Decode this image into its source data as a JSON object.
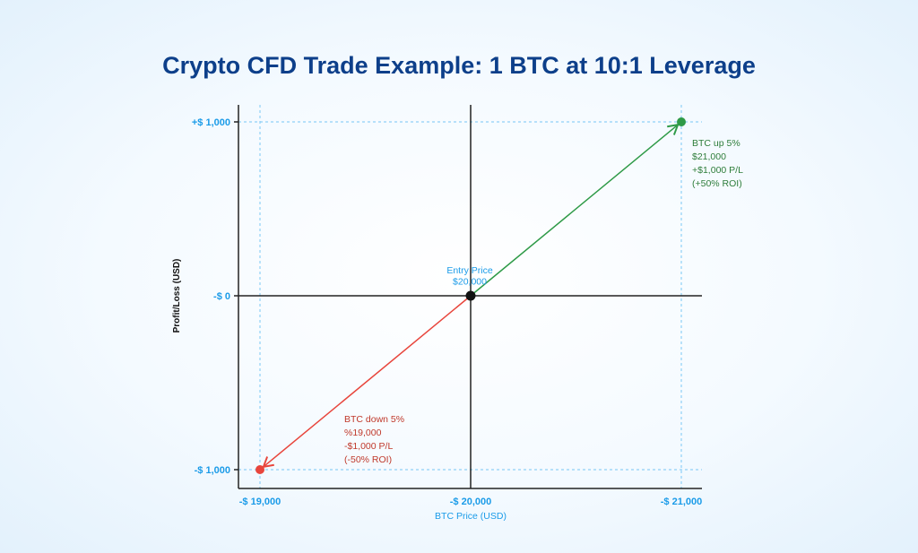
{
  "chart_data": {
    "type": "line",
    "title": "Crypto CFD Trade Example: 1 BTC at 10:1 Leverage",
    "xlabel": "BTC Price (USD)",
    "ylabel": "Profit/Loss (USD)",
    "xlim": [
      18900,
      21100
    ],
    "ylim": [
      -1100,
      1100
    ],
    "x_ticks": [
      {
        "value": 19000,
        "label": "-$ 19,000"
      },
      {
        "value": 20000,
        "label": "-$ 20,000"
      },
      {
        "value": 21000,
        "label": "-$ 21,000"
      }
    ],
    "y_ticks": [
      {
        "value": 1000,
        "label": "+$ 1,000"
      },
      {
        "value": 0,
        "label": "-$ 0"
      },
      {
        "value": -1000,
        "label": "-$ 1,000"
      }
    ],
    "grid": "dotted at tick values",
    "series": [
      {
        "color": "#2e9a47",
        "points": [
          [
            20000,
            0
          ],
          [
            21000,
            1000
          ]
        ]
      },
      {
        "color": "#e8453c",
        "points": [
          [
            20000,
            0
          ],
          [
            19000,
            -1000
          ]
        ]
      }
    ],
    "entry": {
      "x": 20000,
      "y": 0,
      "lines": [
        "Entry Price",
        "$20,000"
      ],
      "color": "#111111"
    },
    "annotations": [
      {
        "x": 21000,
        "y": 1000,
        "color": "#2e7d3a",
        "lines": [
          "BTC up 5%",
          "$21,000",
          "+$1,000 P/L",
          "(+50% ROI)"
        ]
      },
      {
        "x": 19000,
        "y": -1000,
        "color": "#c0392b",
        "lines": [
          "BTC down 5%",
          "%19,000",
          "-$1,000 P/L",
          "(-50% ROI)"
        ]
      }
    ],
    "colors": {
      "tick": "#1a9be8",
      "title": "#0d3f8a",
      "grid": "#8fd0f7",
      "axis": "#222222"
    }
  }
}
